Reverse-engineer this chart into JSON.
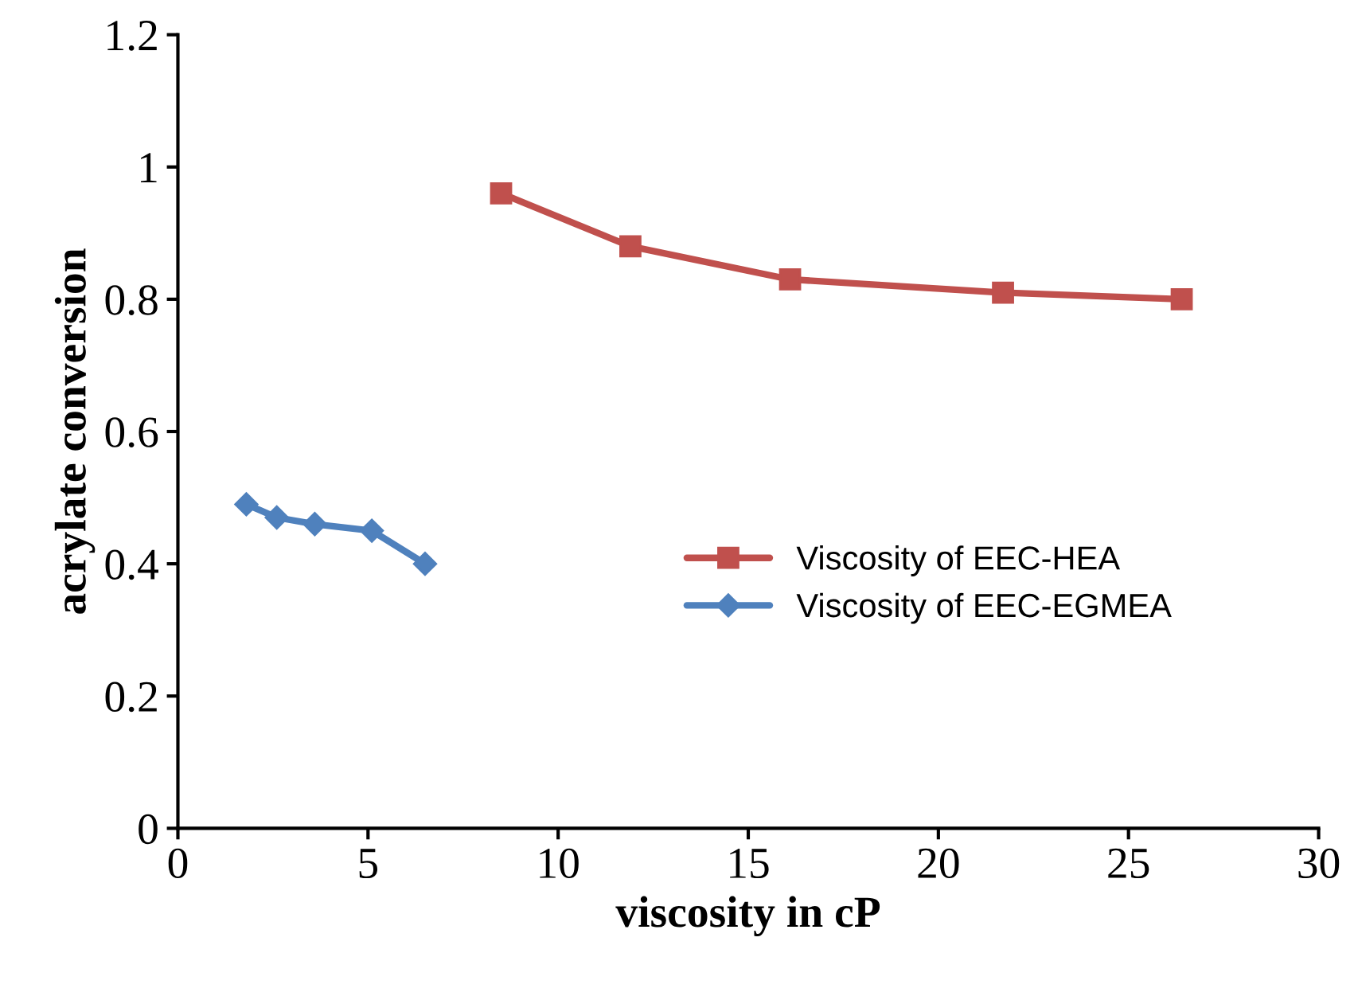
{
  "chart_data": {
    "type": "line",
    "xlabel": "viscosity in cP",
    "ylabel": "acrylate conversion",
    "xlim": [
      0,
      30
    ],
    "xticks": [
      0,
      5,
      10,
      15,
      20,
      25,
      30
    ],
    "ylim": [
      0,
      1.2
    ],
    "yticks": [
      0,
      {
        "value": 0.2,
        "label": "0.2"
      },
      {
        "value": 0.4,
        "label": "0.4"
      },
      {
        "value": 0.6,
        "label": "0.6"
      },
      {
        "value": 0.8,
        "label": "0.8"
      },
      1,
      {
        "value": 1.2,
        "label": "1.2"
      }
    ],
    "grid": false,
    "legend": "right",
    "series": [
      {
        "name": "Viscosity of EEC-HEA",
        "color": "#c0504d",
        "marker": "square",
        "x": [
          8.5,
          11.9,
          16.1,
          21.7,
          26.4
        ],
        "values": [
          0.96,
          0.88,
          0.83,
          0.81,
          0.8
        ]
      },
      {
        "name": "Viscosity of EEC-EGMEA",
        "color": "#4f81bd",
        "marker": "diamond",
        "x": [
          1.8,
          2.6,
          3.6,
          5.1,
          6.5
        ],
        "values": [
          0.49,
          0.47,
          0.46,
          0.45,
          0.4
        ]
      }
    ]
  }
}
